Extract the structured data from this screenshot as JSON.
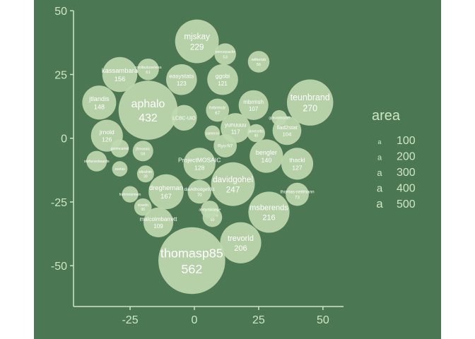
{
  "chart_data": {
    "type": "scatter",
    "title": "",
    "xlabel": "",
    "ylabel": "",
    "xlim": [
      -47,
      58
    ],
    "ylim": [
      -66,
      52
    ],
    "x_ticks": [
      -25,
      0,
      25,
      50
    ],
    "y_ticks": [
      50,
      25,
      0,
      -25,
      -50
    ],
    "x_tick_labels": [
      "-25",
      "0",
      "25",
      "50"
    ],
    "y_tick_labels": [
      "50",
      "25",
      "0",
      "-25",
      "-50"
    ],
    "grid": false,
    "legend": {
      "title": "area",
      "placement": "right",
      "entries": [
        {
          "value": 100,
          "label": "100",
          "key": "a"
        },
        {
          "value": 200,
          "label": "200",
          "key": "a"
        },
        {
          "value": 300,
          "label": "300",
          "key": "a"
        },
        {
          "value": 400,
          "label": "400",
          "key": "a"
        },
        {
          "value": 500,
          "label": "500",
          "key": "a"
        }
      ]
    },
    "colors": {
      "panel": "#4c7753",
      "bubble": "#bfd8b0",
      "text": "#cfe6c2"
    },
    "points": [
      {
        "name": "thomasp85",
        "value": "562",
        "x": -1,
        "y": -48,
        "r": 13
      },
      {
        "name": "aphalo",
        "value": "432",
        "x": -18,
        "y": 11,
        "r": 11.5
      },
      {
        "name": "teunbrand",
        "value": "270",
        "x": 45,
        "y": 14,
        "r": 9
      },
      {
        "name": "mjskay",
        "value": "229",
        "x": 1,
        "y": 38,
        "r": 8.5
      },
      {
        "name": "davidgohel",
        "value": "247",
        "x": 15,
        "y": -18,
        "r": 8.5
      },
      {
        "name": "msberends",
        "value": "216",
        "x": 29,
        "y": -29,
        "r": 8
      },
      {
        "name": "trevorld",
        "value": "206",
        "x": 18,
        "y": -41,
        "r": 8
      },
      {
        "name": "kassambara",
        "value": "156",
        "x": -29,
        "y": 25,
        "r": 6.8
      },
      {
        "name": "jtlandis",
        "value": "148",
        "x": -37,
        "y": 14,
        "r": 6.6
      },
      {
        "name": "jrnold",
        "value": "126",
        "x": -34,
        "y": 1,
        "r": 6.2
      },
      {
        "name": "easystats",
        "value": "123",
        "x": -5,
        "y": 23,
        "r": 6
      },
      {
        "name": "ggobi",
        "value": "121",
        "x": 11,
        "y": 23,
        "r": 6
      },
      {
        "name": "bengler",
        "value": "140",
        "x": 28,
        "y": -7,
        "r": 6.5
      },
      {
        "name": "thackl",
        "value": "127",
        "x": 40,
        "y": -10,
        "r": 6.2
      },
      {
        "name": "mbrmsh",
        "value": "107",
        "x": 23,
        "y": 13,
        "r": 5.8
      },
      {
        "name": "flad2stat",
        "value": "104",
        "x": 36,
        "y": 3,
        "r": 5.6
      },
      {
        "name": "ProjectMOSAIC",
        "value": "128",
        "x": 2,
        "y": -10,
        "r": 6.2
      },
      {
        "name": "dreghernan",
        "value": "167",
        "x": -11,
        "y": -21,
        "r": 6.8
      },
      {
        "name": "malcolmbarrett",
        "value": "109",
        "x": -14,
        "y": -33,
        "r": 5.8
      },
      {
        "name": "LCBC-UiO",
        "value": "",
        "x": -4,
        "y": 8,
        "r": 5
      },
      {
        "name": "yunuuuu",
        "value": "117",
        "x": 16,
        "y": 4,
        "r": 5.8
      },
      {
        "name": "Ryo-N7",
        "value": "",
        "x": 12,
        "y": -3,
        "r": 4.5
      },
      {
        "name": "davidhodge931",
        "value": "70",
        "x": 2,
        "y": -21,
        "r": 4.6
      },
      {
        "name": "thomas-neitmann",
        "value": "73",
        "x": 40,
        "y": -22,
        "r": 4.5
      },
      {
        "name": "wilkelab",
        "value": "56",
        "x": 25,
        "y": 30,
        "r": 4.2
      },
      {
        "name": "piecepackr",
        "value": "53",
        "x": 12,
        "y": 33,
        "r": 4.2
      },
      {
        "name": "stefanedwards",
        "value": "",
        "x": -38,
        "y": -9,
        "r": 4
      },
      {
        "name": "geomcamel",
        "value": "",
        "x": -29,
        "y": -4,
        "r": 3.5
      },
      {
        "name": "jamesotto",
        "value": "40",
        "x": 24,
        "y": 2,
        "r": 3.5
      },
      {
        "name": "hrbrmstr",
        "value": "67",
        "x": 9,
        "y": 11,
        "r": 4.5
      },
      {
        "name": "frohmmemem",
        "value": "",
        "x": -25,
        "y": -22,
        "r": 3.2
      },
      {
        "name": "coolbutuseless",
        "value": "61",
        "x": -18,
        "y": 27,
        "r": 4.2
      },
      {
        "name": "jfmosaic",
        "value": "58",
        "x": -20,
        "y": -5,
        "r": 4
      },
      {
        "name": "gipsolv",
        "value": "50",
        "x": 7,
        "y": -31,
        "r": 3.8
      },
      {
        "name": "ricardo",
        "value": "36",
        "x": -20,
        "y": -27,
        "r": 3.4
      },
      {
        "name": "ebrahim",
        "value": "39",
        "x": -19,
        "y": -14,
        "r": 3.3
      },
      {
        "name": "andyrnarange",
        "value": "",
        "x": 6,
        "y": -28,
        "r": 3.5
      },
      {
        "name": "zeehio",
        "value": "",
        "x": -29,
        "y": -12,
        "r": 3.0
      },
      {
        "name": "gjmvanboxtel",
        "value": "",
        "x": 33,
        "y": 8,
        "r": 3.0
      },
      {
        "name": "cameron",
        "value": "",
        "x": 7,
        "y": 2,
        "r": 3.0
      }
    ]
  }
}
